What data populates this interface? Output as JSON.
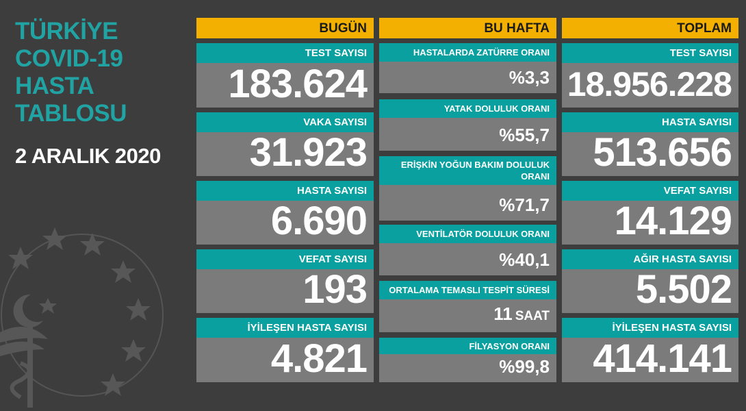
{
  "title": {
    "line1": "TÜRKİYE",
    "line2": "COVID-19",
    "line3": "HASTA",
    "line4": "TABLOSU"
  },
  "date": "2 ARALIK 2020",
  "today": {
    "header": "BUGÜN",
    "items": [
      {
        "label": "TEST SAYISI",
        "value": "183.624"
      },
      {
        "label": "VAKA SAYISI",
        "value": "31.923"
      },
      {
        "label": "HASTA SAYISI",
        "value": "6.690"
      },
      {
        "label": "VEFAT SAYISI",
        "value": "193"
      },
      {
        "label": "İYİLEŞEN HASTA SAYISI",
        "value": "4.821"
      }
    ]
  },
  "week": {
    "header": "BU HAFTA",
    "items": [
      {
        "label": "HASTALARDA ZATÜRRE ORANI",
        "value": "%3,3"
      },
      {
        "label": "YATAK DOLULUK ORANI",
        "value": "%55,7"
      },
      {
        "label": "ERİŞKİN YOĞUN BAKIM DOLULUK ORANI",
        "value": "%71,7"
      },
      {
        "label": "VENTİLATÖR DOLULUK ORANI",
        "value": "%40,1"
      },
      {
        "label": "ORTALAMA TEMASLI TESPİT SÜRESİ",
        "value": "11",
        "unit": "SAAT"
      },
      {
        "label": "FİLYASYON ORANI",
        "value": "%99,8"
      }
    ]
  },
  "total": {
    "header": "TOPLAM",
    "items": [
      {
        "label": "TEST SAYISI",
        "value": "18.956.228"
      },
      {
        "label": "HASTA SAYISI",
        "value": "513.656"
      },
      {
        "label": "VEFAT SAYISI",
        "value": "14.129"
      },
      {
        "label": "AĞIR HASTA SAYISI",
        "value": "5.502"
      },
      {
        "label": "İYİLEŞEN HASTA SAYISI",
        "value": "414.141"
      }
    ]
  },
  "colors": {
    "teal": "#0aa0a0",
    "title": "#22a3a3",
    "yellow": "#f3b000",
    "card": "#7b7b7b",
    "background": "#3d3d3d"
  },
  "icons": {
    "emblem": "ministry-emblem-icon"
  }
}
